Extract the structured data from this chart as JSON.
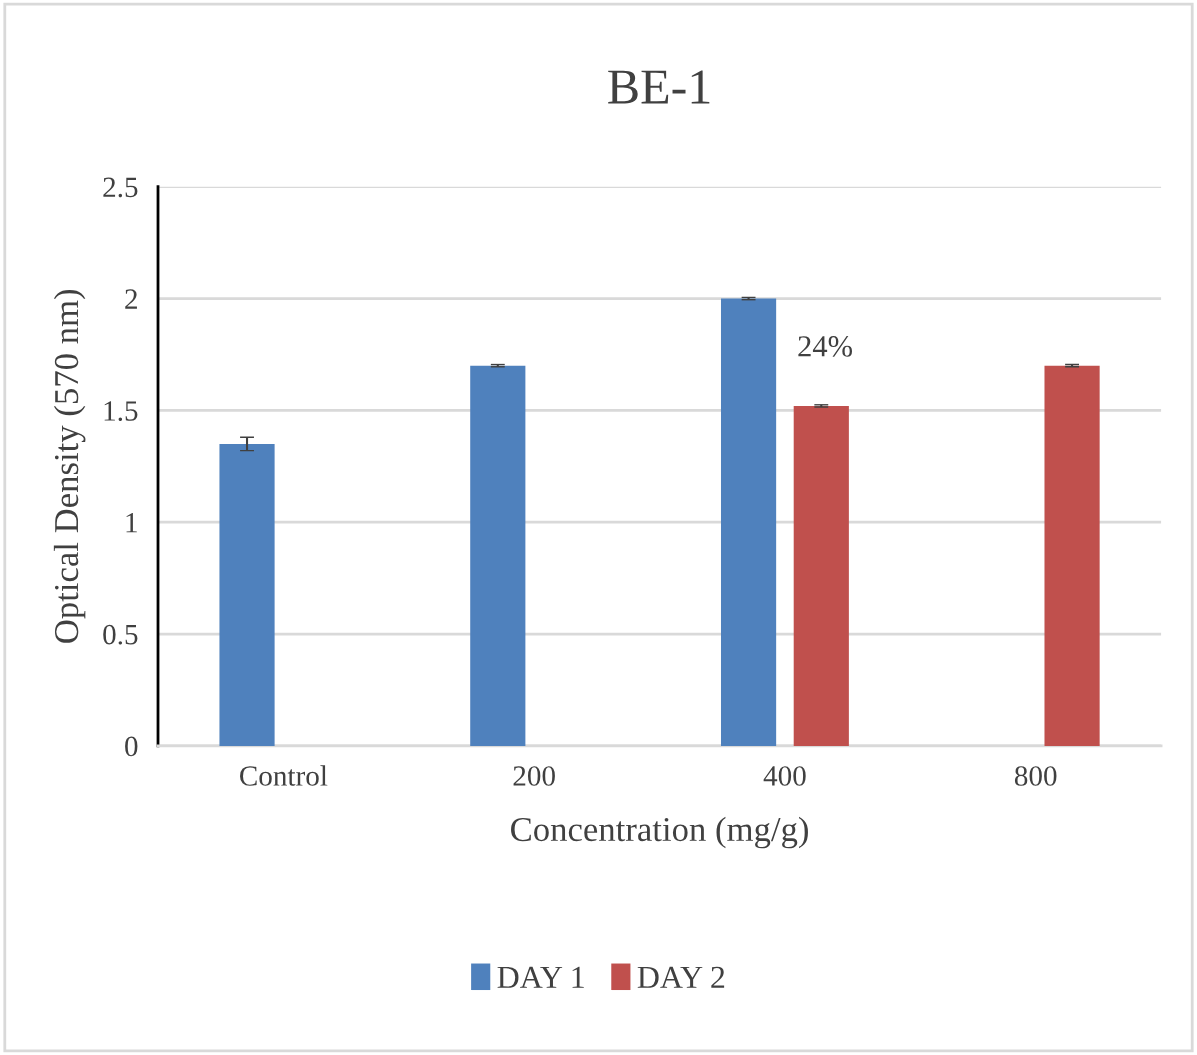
{
  "chart_data": {
    "type": "bar",
    "title": "BE-1",
    "xlabel": "Concentration (mg/g)",
    "ylabel": "Optical Density (570 nm)",
    "categories": [
      "Control",
      "200",
      "400",
      "800"
    ],
    "series": [
      {
        "name": "DAY 1",
        "color": "#4f81bd",
        "values": [
          1.35,
          1.7,
          2.0,
          null
        ],
        "errors": [
          0.03,
          0.005,
          0.005,
          null
        ]
      },
      {
        "name": "DAY 2",
        "color": "#c0504d",
        "values": [
          null,
          null,
          1.52,
          1.7
        ],
        "errors": [
          null,
          null,
          0.005,
          0.005
        ]
      }
    ],
    "ylim": [
      0,
      2.5
    ],
    "yticks": [
      0,
      0.5,
      1,
      1.5,
      2,
      2.5
    ],
    "grid": "y",
    "legend": "bottom",
    "annotations": [
      "24%"
    ]
  }
}
